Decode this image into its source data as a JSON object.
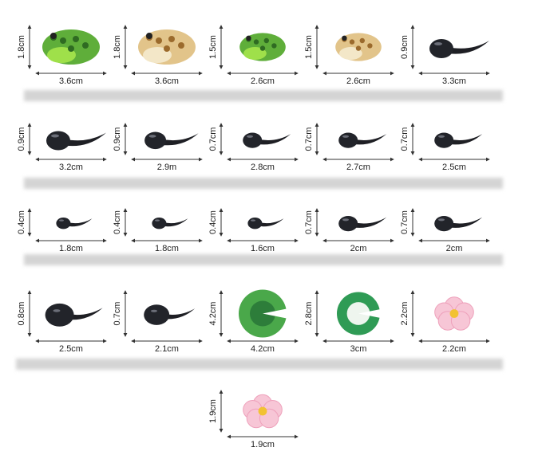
{
  "items": [
    {
      "height": "1.8cm",
      "width": "3.6cm"
    },
    {
      "height": "1.8cm",
      "width": "3.6cm"
    },
    {
      "height": "1.5cm",
      "width": "2.6cm"
    },
    {
      "height": "1.5cm",
      "width": "2.6cm"
    },
    {
      "height": "0.9cm",
      "width": "3.3cm"
    },
    {
      "height": "0.9cm",
      "width": "3.2cm"
    },
    {
      "height": "0.9cm",
      "width": "2.9m"
    },
    {
      "height": "0.7cm",
      "width": "2.8cm"
    },
    {
      "height": "0.7cm",
      "width": "2.7cm"
    },
    {
      "height": "0.7cm",
      "width": "2.5cm"
    },
    {
      "height": "0.4cm",
      "width": "1.8cm"
    },
    {
      "height": "0.4cm",
      "width": "1.8cm"
    },
    {
      "height": "0.4cm",
      "width": "1.6cm"
    },
    {
      "height": "0.7cm",
      "width": "2cm"
    },
    {
      "height": "0.7cm",
      "width": "2cm"
    },
    {
      "height": "0.8cm",
      "width": "2.5cm"
    },
    {
      "height": "0.7cm",
      "width": "2.1cm"
    },
    {
      "height": "4.2cm",
      "width": "4.2cm"
    },
    {
      "height": "2.8cm",
      "width": "3cm"
    },
    {
      "height": "2.2cm",
      "width": "2.2cm"
    },
    {
      "height": "1.9cm",
      "width": "1.9cm"
    }
  ]
}
